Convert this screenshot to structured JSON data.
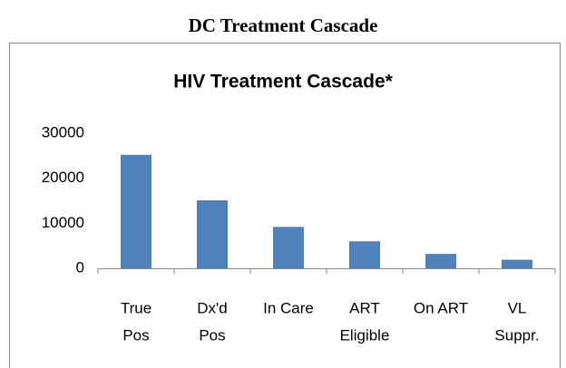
{
  "page_title": "DC Treatment Cascade",
  "chart_data": {
    "type": "bar",
    "title": "HIV Treatment Cascade*",
    "categories": [
      [
        "True",
        "Pos"
      ],
      [
        "Dx'd",
        "Pos"
      ],
      [
        "In Care"
      ],
      [
        "ART",
        "Eligible"
      ],
      [
        "On ART"
      ],
      [
        "VL",
        "Suppr."
      ]
    ],
    "values": [
      25200,
      15100,
      9200,
      6000,
      3200,
      1900
    ],
    "color": "#4f81bd",
    "ylim": [
      0,
      30000
    ],
    "yticks": [
      0,
      10000,
      20000,
      30000
    ],
    "grid": false
  }
}
